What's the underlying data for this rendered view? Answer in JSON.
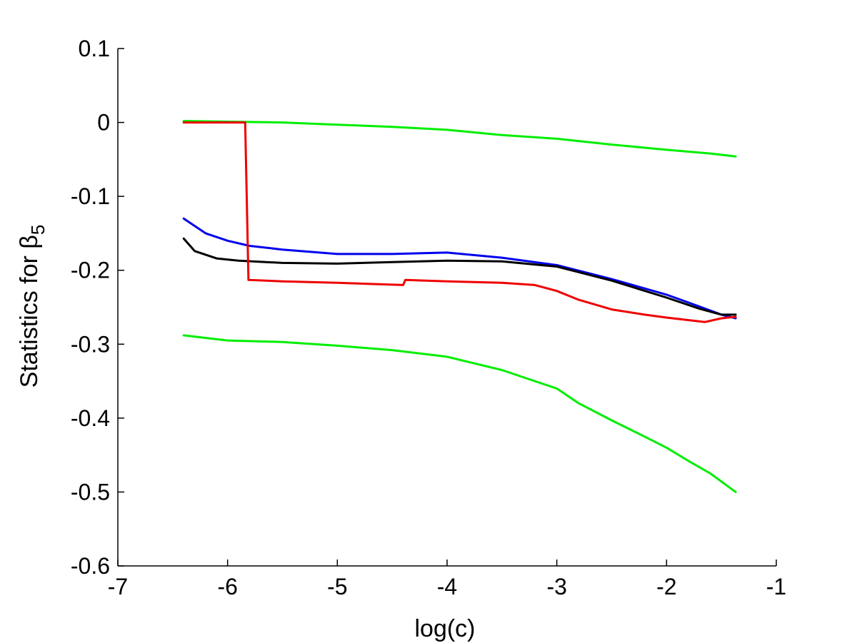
{
  "chart_data": {
    "type": "line",
    "title": "",
    "xlabel": "log(c)",
    "ylabel": "Statistics for β",
    "ylabel_subscript": "5",
    "xlim": [
      -7,
      -1
    ],
    "ylim": [
      -0.6,
      0.1
    ],
    "x_ticks": [
      "-7",
      "-6",
      "-5",
      "-4",
      "-3",
      "-2",
      "-1"
    ],
    "y_ticks": [
      "0.1",
      "0",
      "-0.1",
      "-0.2",
      "-0.3",
      "-0.4",
      "-0.5",
      "-0.6"
    ],
    "grid": false,
    "legend": "none",
    "series": [
      {
        "color": "#00ee00",
        "x": [
          -6.4,
          -6.0,
          -5.5,
          -5.0,
          -4.5,
          -4.0,
          -3.5,
          -3.0,
          -2.5,
          -2.0,
          -1.6,
          -1.37
        ],
        "y": [
          0.002,
          0.001,
          0.0,
          -0.003,
          -0.006,
          -0.01,
          -0.017,
          -0.022,
          -0.03,
          -0.037,
          -0.042,
          -0.046
        ]
      },
      {
        "color": "#00ee00",
        "x": [
          -6.4,
          -6.0,
          -5.5,
          -5.0,
          -4.5,
          -4.0,
          -3.5,
          -3.0,
          -2.8,
          -2.5,
          -2.2,
          -2.0,
          -1.8,
          -1.6,
          -1.37
        ],
        "y": [
          -0.288,
          -0.295,
          -0.297,
          -0.302,
          -0.308,
          -0.317,
          -0.335,
          -0.36,
          -0.38,
          -0.403,
          -0.425,
          -0.44,
          -0.458,
          -0.475,
          -0.5
        ]
      },
      {
        "color": "#0000ee",
        "x": [
          -6.4,
          -6.2,
          -6.0,
          -5.8,
          -5.5,
          -5.0,
          -4.5,
          -4.0,
          -3.5,
          -3.0,
          -2.5,
          -2.0,
          -1.7,
          -1.5,
          -1.37
        ],
        "y": [
          -0.13,
          -0.15,
          -0.16,
          -0.167,
          -0.172,
          -0.178,
          -0.178,
          -0.176,
          -0.183,
          -0.193,
          -0.212,
          -0.233,
          -0.249,
          -0.26,
          -0.265
        ]
      },
      {
        "color": "#000000",
        "x": [
          -6.4,
          -6.3,
          -6.1,
          -5.9,
          -5.5,
          -5.0,
          -4.5,
          -4.0,
          -3.5,
          -3.0,
          -2.5,
          -2.0,
          -1.7,
          -1.5,
          -1.37
        ],
        "y": [
          -0.157,
          -0.174,
          -0.184,
          -0.187,
          -0.19,
          -0.191,
          -0.189,
          -0.187,
          -0.188,
          -0.195,
          -0.214,
          -0.237,
          -0.252,
          -0.26,
          -0.26
        ]
      },
      {
        "color": "#ee0000",
        "x": [
          -6.4,
          -5.84,
          -5.81,
          -5.5,
          -5.0,
          -4.4,
          -4.38,
          -4.0,
          -3.5,
          -3.2,
          -3.0,
          -2.8,
          -2.5,
          -2.2,
          -2.0,
          -1.65,
          -1.5,
          -1.37
        ],
        "y": [
          0.0,
          0.0,
          -0.213,
          -0.215,
          -0.217,
          -0.22,
          -0.213,
          -0.215,
          -0.217,
          -0.22,
          -0.228,
          -0.24,
          -0.253,
          -0.26,
          -0.264,
          -0.27,
          -0.265,
          -0.263
        ]
      }
    ]
  }
}
